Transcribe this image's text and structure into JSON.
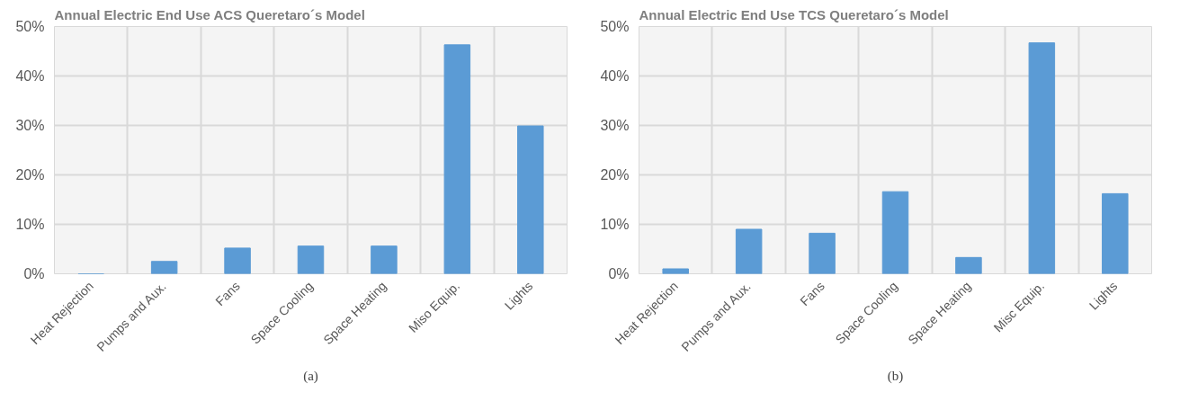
{
  "chart_data": [
    {
      "type": "bar",
      "title": "Annual Electric End Use ACS  Queretaro´s Model",
      "categories": [
        "Heat Rejection",
        "Pumps and Aux.",
        "Fans",
        "Space Cooling",
        "Space Heating",
        "Miso Equip.",
        "Lights"
      ],
      "values": [
        0,
        2.5,
        5.2,
        5.6,
        5.6,
        46.3,
        29.9
      ],
      "color": "#5b9bd5",
      "ylim": [
        0,
        50
      ],
      "yticks": [
        {
          "value": 0,
          "label": "0%"
        },
        {
          "value": 10,
          "label": "10%"
        },
        {
          "value": 20,
          "label": "20%"
        },
        {
          "value": 30,
          "label": "30%"
        },
        {
          "value": 40,
          "label": "40%"
        },
        {
          "value": 50,
          "label": "50%"
        }
      ],
      "grid": true,
      "annotations": [
        "(a)"
      ]
    },
    {
      "type": "bar",
      "title": "Annual Electric End Use TCS Queretaro´s Model",
      "categories": [
        "Heat Rejection",
        "Pumps and Aux.",
        "Fans",
        "Space Cooling",
        "Space Heating",
        "Misc Equip.",
        "Lights"
      ],
      "values": [
        1,
        9,
        8.2,
        16.6,
        3.3,
        46.7,
        16.2
      ],
      "color": "#5b9bd5",
      "ylim": [
        0,
        50
      ],
      "yticks": [
        {
          "value": 0,
          "label": "0%"
        },
        {
          "value": 10,
          "label": "10%"
        },
        {
          "value": 20,
          "label": "20%"
        },
        {
          "value": 30,
          "label": "30%"
        },
        {
          "value": 40,
          "label": "40%"
        },
        {
          "value": 50,
          "label": "50%"
        }
      ],
      "grid": true,
      "annotations": [
        "(b)"
      ]
    }
  ]
}
